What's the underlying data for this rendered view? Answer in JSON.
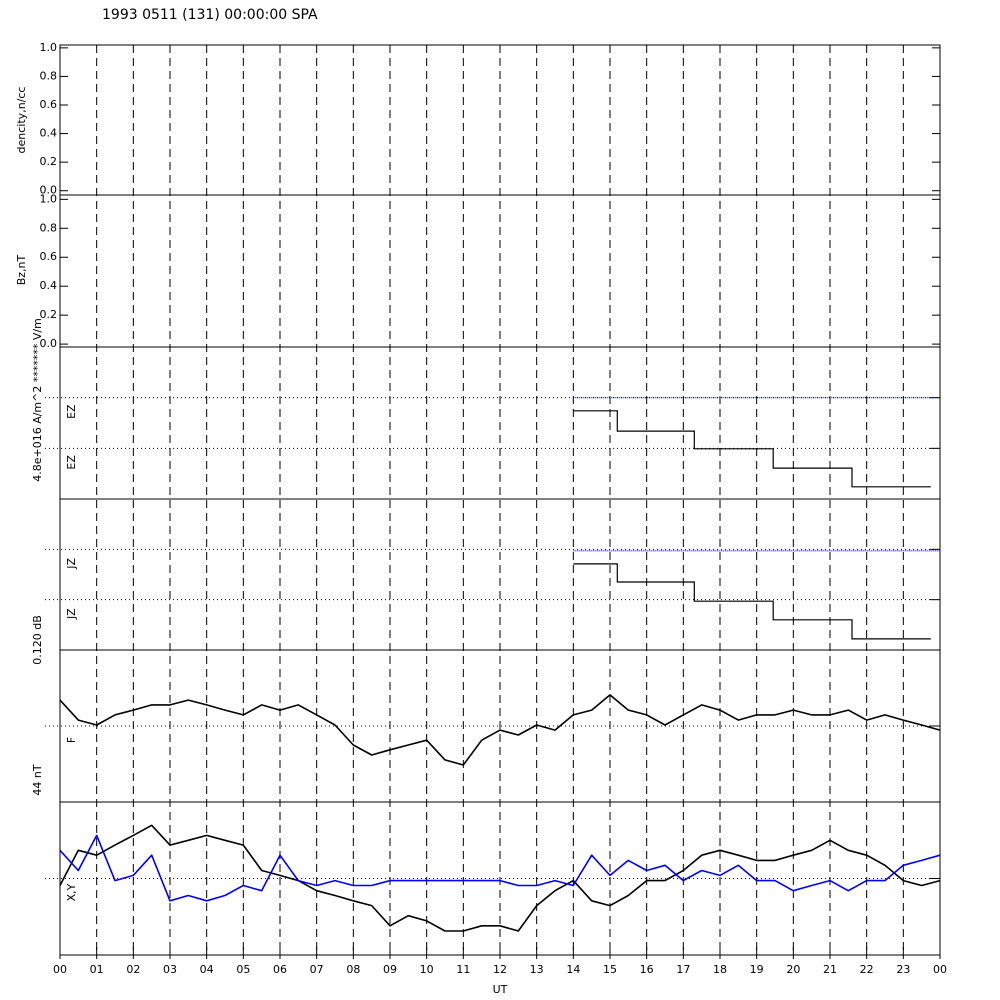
{
  "title": "1993 0511 (131) 00:00:00 SPA",
  "x_axis": {
    "label": "UT",
    "xlim": [
      0,
      24
    ],
    "xticks": [
      {
        "value": 0,
        "label": "00"
      },
      {
        "value": 1,
        "label": "01"
      },
      {
        "value": 2,
        "label": "02"
      },
      {
        "value": 3,
        "label": "03"
      },
      {
        "value": 4,
        "label": "04"
      },
      {
        "value": 5,
        "label": "05"
      },
      {
        "value": 6,
        "label": "06"
      },
      {
        "value": 7,
        "label": "07"
      },
      {
        "value": 8,
        "label": "08"
      },
      {
        "value": 9,
        "label": "09"
      },
      10,
      11,
      12,
      13,
      14,
      15,
      16,
      17,
      18,
      19,
      20,
      21,
      22,
      23,
      {
        "value": 24,
        "label": "00"
      }
    ],
    "grid": "dashed"
  },
  "chart_data": [
    {
      "type": "line",
      "ylabel": "dencity,n/cc",
      "ylim": [
        -0.03,
        1.02
      ],
      "yticks": [
        {
          "value": 0,
          "label": "0.0"
        },
        {
          "value": 0.2,
          "label": "0.2"
        },
        {
          "value": 0.4,
          "label": "0.4"
        },
        {
          "value": 0.6,
          "label": "0.6"
        },
        {
          "value": 0.8,
          "label": "0.8"
        },
        {
          "value": 1,
          "label": "1.0"
        }
      ]
    },
    {
      "type": "line",
      "ylabel": "Bz,nT",
      "ylim": [
        -0.02,
        1.03
      ],
      "yticks": [
        {
          "value": 0,
          "label": "0.0"
        },
        {
          "value": 0.2,
          "label": "0.2"
        },
        {
          "value": 0.4,
          "label": "0.4"
        },
        {
          "value": 0.6,
          "label": "0.6"
        },
        {
          "value": 0.8,
          "label": "0.8"
        },
        {
          "value": 1,
          "label": "1.0"
        }
      ]
    },
    {
      "type": "step",
      "ylabel": "4.8e+016 A/m^2  ******* V/m",
      "ylim": [
        0,
        3
      ],
      "yticks": [
        1,
        2
      ],
      "grid": "dotted",
      "labels": [
        "EZ",
        "EZ"
      ],
      "series": [
        {
          "color": "#000000",
          "x": [
            14,
            15.2,
            17.3,
            19.45,
            21.6,
            23.75
          ],
          "values": [
            1.74,
            1.34,
            0.99,
            0.61,
            0.24,
            0.24
          ]
        },
        {
          "color": "#0000ff",
          "dash": "dotted",
          "x": [
            14,
            24
          ],
          "values": [
            2,
            2
          ]
        }
      ]
    },
    {
      "type": "step",
      "ylabel": "0.120 dB",
      "ylim": [
        0,
        3
      ],
      "yticks": [
        1,
        2
      ],
      "grid": "dotted",
      "labels": [
        "JZ",
        "JZ"
      ],
      "series": [
        {
          "color": "#000000",
          "x": [
            14,
            15.2,
            17.3,
            19.45,
            21.6,
            23.75
          ],
          "values": [
            1.71,
            1.35,
            0.97,
            0.6,
            0.22,
            0.22
          ]
        },
        {
          "color": "#0000ff",
          "dash": "dotted",
          "x": [
            14,
            24
          ],
          "values": [
            1.97,
            1.97
          ]
        }
      ]
    },
    {
      "type": "line",
      "ylabel": "44 nT",
      "ylim": [
        -22,
        22
      ],
      "yticks": [
        0
      ],
      "grid": "dotted",
      "labels": [
        "F"
      ],
      "x": [
        0,
        0.5,
        1,
        1.5,
        2,
        2.5,
        3,
        3.5,
        4,
        4.5,
        5,
        5.5,
        6,
        6.5,
        7,
        7.5,
        8,
        8.5,
        9,
        9.5,
        10,
        10.5,
        11,
        11.5,
        12,
        12.5,
        13,
        13.5,
        14,
        14.5,
        15,
        15.5,
        16,
        16.5,
        17,
        17.5,
        18,
        18.5,
        19,
        19.5,
        20,
        20.5,
        21,
        21.5,
        22,
        22.5,
        23,
        23.5,
        24
      ],
      "series": [
        {
          "color": "#000000",
          "values": [
            7.5,
            1.7,
            0.3,
            3.2,
            4.6,
            6.1,
            6.1,
            7.5,
            6.1,
            4.6,
            3.2,
            6.1,
            4.6,
            6.1,
            3.2,
            0.3,
            -5.5,
            -8.4,
            -6.9,
            -5.5,
            -4.1,
            -9.8,
            -11.3,
            -4.1,
            -1.2,
            -2.6,
            0.3,
            -1.2,
            3.2,
            4.6,
            9.0,
            4.6,
            3.2,
            0.3,
            3.2,
            6.1,
            4.6,
            1.7,
            3.2,
            3.2,
            4.6,
            3.2,
            3.2,
            4.6,
            1.7,
            3.2,
            1.7,
            0.3,
            -1.2
          ]
        }
      ]
    },
    {
      "type": "line",
      "ylim": [
        -22,
        22
      ],
      "yticks": [
        0
      ],
      "grid": "dotted",
      "labels": [
        "X,Y"
      ],
      "x": [
        0,
        0.5,
        1,
        1.5,
        2,
        2.5,
        3,
        3.5,
        4,
        4.5,
        5,
        5.5,
        6,
        6.5,
        7,
        7.5,
        8,
        8.5,
        9,
        9.5,
        10,
        10.5,
        11,
        11.5,
        12,
        12.5,
        13,
        13.5,
        14,
        14.5,
        15,
        15.5,
        16,
        16.5,
        17,
        17.5,
        18,
        18.5,
        19,
        19.5,
        20,
        20.5,
        21,
        21.5,
        22,
        22.5,
        23,
        23.5,
        24
      ],
      "series": [
        {
          "color": "#000000",
          "values": [
            -2.0,
            8.1,
            6.7,
            9.6,
            12.4,
            15.3,
            9.6,
            11.0,
            12.4,
            11.0,
            9.6,
            2.3,
            0.9,
            -0.6,
            -3.5,
            -4.9,
            -6.4,
            -7.8,
            -13.6,
            -10.7,
            -12.2,
            -15.1,
            -15.1,
            -13.6,
            -13.6,
            -15.1,
            -7.8,
            -3.5,
            -0.6,
            -6.4,
            -7.8,
            -4.9,
            -0.6,
            -0.6,
            2.3,
            6.7,
            8.1,
            6.7,
            5.2,
            5.2,
            6.7,
            8.1,
            11.0,
            8.1,
            6.7,
            3.8,
            -0.6,
            -2.0,
            -0.6
          ]
        },
        {
          "color": "#0000ff",
          "values": [
            8.1,
            2.3,
            12.4,
            -0.6,
            0.9,
            6.7,
            -6.4,
            -4.9,
            -6.4,
            -4.9,
            -2.0,
            -3.5,
            6.7,
            -0.6,
            -2.0,
            -0.6,
            -2.0,
            -2.0,
            -0.6,
            -0.6,
            -0.6,
            -0.6,
            -0.6,
            -0.6,
            -0.6,
            -2.0,
            -2.0,
            -0.6,
            -2.0,
            6.7,
            0.9,
            5.2,
            2.3,
            3.8,
            -0.6,
            2.3,
            0.9,
            3.8,
            -0.6,
            -0.6,
            -3.5,
            -2.0,
            -0.6,
            -3.5,
            -0.6,
            -0.6,
            3.8,
            5.2,
            6.7
          ]
        }
      ]
    }
  ]
}
